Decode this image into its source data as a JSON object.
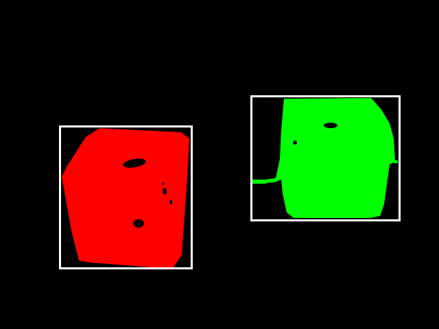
{
  "scene": {
    "background_color": "#000000",
    "box_color": "#ffffff"
  },
  "detections": [
    {
      "color": "#ff0000",
      "color_name": "red",
      "shape": "cube"
    },
    {
      "color": "#00ff00",
      "color_name": "green",
      "shape": "cube"
    }
  ]
}
